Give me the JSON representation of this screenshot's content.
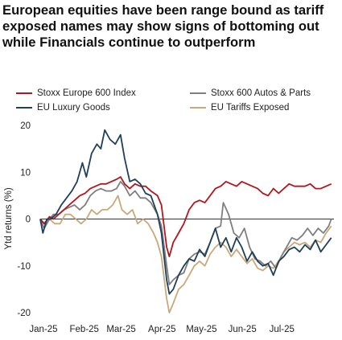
{
  "chart_data": {
    "type": "line",
    "title": "European equities have been range bound as tariff exposed names may show signs of bottoming out while Financials continue to outperform",
    "ylabel": "Ytd returns (%)",
    "xlabel": "",
    "ylim": [
      -20,
      20
    ],
    "yticks": [
      -20,
      -10,
      0,
      10,
      20
    ],
    "xlim": [
      "2025-01-01",
      "2025-08-12"
    ],
    "xticks": [
      {
        "date": "2025-01-01",
        "label": "Jan-25"
      },
      {
        "date": "2025-02-01",
        "label": "Feb-25"
      },
      {
        "date": "2025-03-01",
        "label": "Mar-25"
      },
      {
        "date": "2025-04-01",
        "label": "Apr-25"
      },
      {
        "date": "2025-05-01",
        "label": "May-25"
      },
      {
        "date": "2025-06-01",
        "label": "Jun-25"
      },
      {
        "date": "2025-07-01",
        "label": "Jul-25"
      }
    ],
    "zero_line": true,
    "grid": false,
    "legend_position": "top",
    "series": [
      {
        "name": "Stoxx Europe 600 Index",
        "color": "#b5161d",
        "points": [
          [
            "2025-01-01",
            0
          ],
          [
            "2025-01-04",
            -1
          ],
          [
            "2025-01-08",
            0.5
          ],
          [
            "2025-01-11",
            0
          ],
          [
            "2025-01-15",
            1
          ],
          [
            "2025-01-19",
            2
          ],
          [
            "2025-01-23",
            3
          ],
          [
            "2025-01-27",
            4
          ],
          [
            "2025-01-31",
            5
          ],
          [
            "2025-02-04",
            5.5
          ],
          [
            "2025-02-08",
            6.5
          ],
          [
            "2025-02-12",
            7
          ],
          [
            "2025-02-16",
            7.5
          ],
          [
            "2025-02-20",
            7.5
          ],
          [
            "2025-02-24",
            8
          ],
          [
            "2025-02-28",
            8.5
          ],
          [
            "2025-03-03",
            9
          ],
          [
            "2025-03-06",
            7.5
          ],
          [
            "2025-03-10",
            6.5
          ],
          [
            "2025-03-14",
            7.5
          ],
          [
            "2025-03-18",
            7
          ],
          [
            "2025-03-22",
            7
          ],
          [
            "2025-03-26",
            6
          ],
          [
            "2025-03-31",
            5
          ],
          [
            "2025-04-03",
            3
          ],
          [
            "2025-04-07",
            -6
          ],
          [
            "2025-04-09",
            -8
          ],
          [
            "2025-04-12",
            -5
          ],
          [
            "2025-04-16",
            -3
          ],
          [
            "2025-04-20",
            -1
          ],
          [
            "2025-04-24",
            2
          ],
          [
            "2025-04-28",
            3.5
          ],
          [
            "2025-05-02",
            4
          ],
          [
            "2025-05-06",
            3.5
          ],
          [
            "2025-05-10",
            5
          ],
          [
            "2025-05-14",
            6.5
          ],
          [
            "2025-05-18",
            7
          ],
          [
            "2025-05-22",
            8
          ],
          [
            "2025-05-26",
            7.5
          ],
          [
            "2025-05-30",
            7
          ],
          [
            "2025-06-03",
            8
          ],
          [
            "2025-06-07",
            7.5
          ],
          [
            "2025-06-11",
            7
          ],
          [
            "2025-06-15",
            6.5
          ],
          [
            "2025-06-19",
            5.5
          ],
          [
            "2025-06-23",
            5
          ],
          [
            "2025-06-27",
            6.5
          ],
          [
            "2025-07-01",
            5.5
          ],
          [
            "2025-07-05",
            6.5
          ],
          [
            "2025-07-09",
            7.5
          ],
          [
            "2025-07-13",
            7
          ],
          [
            "2025-07-17",
            7
          ],
          [
            "2025-07-21",
            7
          ],
          [
            "2025-07-25",
            7.5
          ],
          [
            "2025-07-29",
            6.5
          ],
          [
            "2025-08-02",
            6.5
          ],
          [
            "2025-08-06",
            7
          ],
          [
            "2025-08-10",
            7.5
          ]
        ]
      },
      {
        "name": "Stoxx 600 Autos & Parts",
        "color": "#7f7f7f",
        "points": [
          [
            "2025-01-01",
            0
          ],
          [
            "2025-01-04",
            -2
          ],
          [
            "2025-01-08",
            0
          ],
          [
            "2025-01-11",
            1
          ],
          [
            "2025-01-15",
            1
          ],
          [
            "2025-01-19",
            2
          ],
          [
            "2025-01-23",
            2.5
          ],
          [
            "2025-01-27",
            3
          ],
          [
            "2025-01-31",
            2
          ],
          [
            "2025-02-04",
            3
          ],
          [
            "2025-02-08",
            5
          ],
          [
            "2025-02-12",
            6
          ],
          [
            "2025-02-16",
            6.5
          ],
          [
            "2025-02-20",
            6
          ],
          [
            "2025-02-24",
            6
          ],
          [
            "2025-02-28",
            6.5
          ],
          [
            "2025-03-03",
            8
          ],
          [
            "2025-03-06",
            7
          ],
          [
            "2025-03-10",
            5
          ],
          [
            "2025-03-14",
            6
          ],
          [
            "2025-03-18",
            4.5
          ],
          [
            "2025-03-22",
            4.5
          ],
          [
            "2025-03-26",
            3.5
          ],
          [
            "2025-03-31",
            1
          ],
          [
            "2025-04-03",
            -1.5
          ],
          [
            "2025-04-07",
            -10
          ],
          [
            "2025-04-09",
            -14
          ],
          [
            "2025-04-12",
            -13
          ],
          [
            "2025-04-16",
            -12
          ],
          [
            "2025-04-20",
            -11.5
          ],
          [
            "2025-04-24",
            -8.5
          ],
          [
            "2025-04-28",
            -7.5
          ],
          [
            "2025-05-02",
            -7
          ],
          [
            "2025-05-06",
            -7.5
          ],
          [
            "2025-05-10",
            -5
          ],
          [
            "2025-05-14",
            -2
          ],
          [
            "2025-05-18",
            -1.5
          ],
          [
            "2025-05-20",
            3.5
          ],
          [
            "2025-05-24",
            1
          ],
          [
            "2025-05-28",
            -3
          ],
          [
            "2025-06-01",
            -4
          ],
          [
            "2025-06-05",
            -2
          ],
          [
            "2025-06-09",
            -6
          ],
          [
            "2025-06-13",
            -8.5
          ],
          [
            "2025-06-17",
            -9
          ],
          [
            "2025-06-21",
            -10
          ],
          [
            "2025-06-25",
            -9
          ],
          [
            "2025-06-29",
            -10.5
          ],
          [
            "2025-07-03",
            -8
          ],
          [
            "2025-07-07",
            -6
          ],
          [
            "2025-07-11",
            -4
          ],
          [
            "2025-07-15",
            -4.5
          ],
          [
            "2025-07-19",
            -3.5
          ],
          [
            "2025-07-23",
            -2
          ],
          [
            "2025-07-27",
            -3.5
          ],
          [
            "2025-07-31",
            -2
          ],
          [
            "2025-08-04",
            -3
          ],
          [
            "2025-08-08",
            -1.5
          ],
          [
            "2025-08-10",
            0
          ]
        ]
      },
      {
        "name": "EU Luxury Goods",
        "color": "#1f3f5a",
        "points": [
          [
            "2025-01-01",
            0
          ],
          [
            "2025-01-03",
            -3
          ],
          [
            "2025-01-06",
            0
          ],
          [
            "2025-01-09",
            0
          ],
          [
            "2025-01-13",
            1
          ],
          [
            "2025-01-17",
            3
          ],
          [
            "2025-01-21",
            4.5
          ],
          [
            "2025-01-25",
            6
          ],
          [
            "2025-01-29",
            8
          ],
          [
            "2025-02-02",
            12
          ],
          [
            "2025-02-05",
            9
          ],
          [
            "2025-02-09",
            14
          ],
          [
            "2025-02-13",
            16
          ],
          [
            "2025-02-16",
            15
          ],
          [
            "2025-02-19",
            19
          ],
          [
            "2025-02-23",
            17
          ],
          [
            "2025-02-27",
            16
          ],
          [
            "2025-03-03",
            18
          ],
          [
            "2025-03-06",
            13
          ],
          [
            "2025-03-10",
            8
          ],
          [
            "2025-03-14",
            8.5
          ],
          [
            "2025-03-18",
            7.5
          ],
          [
            "2025-03-22",
            5.5
          ],
          [
            "2025-03-26",
            5
          ],
          [
            "2025-03-31",
            1
          ],
          [
            "2025-04-03",
            -3
          ],
          [
            "2025-04-07",
            -13
          ],
          [
            "2025-04-09",
            -16
          ],
          [
            "2025-04-12",
            -15
          ],
          [
            "2025-04-16",
            -12
          ],
          [
            "2025-04-20",
            -10
          ],
          [
            "2025-04-24",
            -8.5
          ],
          [
            "2025-04-28",
            -9
          ],
          [
            "2025-05-02",
            -6.5
          ],
          [
            "2025-05-06",
            -8
          ],
          [
            "2025-05-10",
            -5
          ],
          [
            "2025-05-14",
            -2
          ],
          [
            "2025-05-18",
            -6
          ],
          [
            "2025-05-22",
            -4
          ],
          [
            "2025-05-26",
            -7
          ],
          [
            "2025-05-30",
            -4
          ],
          [
            "2025-06-03",
            -6
          ],
          [
            "2025-06-07",
            -9
          ],
          [
            "2025-06-11",
            -7
          ],
          [
            "2025-06-15",
            -9
          ],
          [
            "2025-06-19",
            -10
          ],
          [
            "2025-06-23",
            -9.5
          ],
          [
            "2025-06-27",
            -12
          ],
          [
            "2025-07-01",
            -9
          ],
          [
            "2025-07-05",
            -8
          ],
          [
            "2025-07-09",
            -6.5
          ],
          [
            "2025-07-13",
            -6
          ],
          [
            "2025-07-17",
            -7
          ],
          [
            "2025-07-21",
            -5.5
          ],
          [
            "2025-07-25",
            -6.5
          ],
          [
            "2025-07-29",
            -4.5
          ],
          [
            "2025-08-02",
            -7
          ],
          [
            "2025-08-06",
            -5.5
          ],
          [
            "2025-08-10",
            -4
          ]
        ]
      },
      {
        "name": "EU Tariffs Exposed",
        "color": "#c8a97a",
        "points": [
          [
            "2025-01-01",
            0
          ],
          [
            "2025-01-04",
            -1
          ],
          [
            "2025-01-08",
            0
          ],
          [
            "2025-01-12",
            -1
          ],
          [
            "2025-01-16",
            -1
          ],
          [
            "2025-01-20",
            1
          ],
          [
            "2025-01-24",
            1
          ],
          [
            "2025-01-28",
            0
          ],
          [
            "2025-02-01",
            -1
          ],
          [
            "2025-02-05",
            0
          ],
          [
            "2025-02-09",
            2
          ],
          [
            "2025-02-13",
            1
          ],
          [
            "2025-02-17",
            2
          ],
          [
            "2025-02-21",
            2
          ],
          [
            "2025-02-25",
            3
          ],
          [
            "2025-03-01",
            5
          ],
          [
            "2025-03-04",
            2
          ],
          [
            "2025-03-08",
            1
          ],
          [
            "2025-03-12",
            2
          ],
          [
            "2025-03-16",
            -1
          ],
          [
            "2025-03-20",
            0
          ],
          [
            "2025-03-24",
            -1
          ],
          [
            "2025-03-28",
            -3
          ],
          [
            "2025-03-31",
            -5
          ],
          [
            "2025-04-03",
            -8
          ],
          [
            "2025-04-07",
            -17
          ],
          [
            "2025-04-09",
            -20
          ],
          [
            "2025-04-12",
            -18
          ],
          [
            "2025-04-16",
            -15
          ],
          [
            "2025-04-20",
            -14
          ],
          [
            "2025-04-24",
            -12
          ],
          [
            "2025-04-28",
            -10
          ],
          [
            "2025-05-02",
            -9
          ],
          [
            "2025-05-06",
            -10
          ],
          [
            "2025-05-10",
            -7.5
          ],
          [
            "2025-05-14",
            -6
          ],
          [
            "2025-05-18",
            -5
          ],
          [
            "2025-05-22",
            -6
          ],
          [
            "2025-05-26",
            -8
          ],
          [
            "2025-05-30",
            -6.5
          ],
          [
            "2025-06-03",
            -8
          ],
          [
            "2025-06-07",
            -9.5
          ],
          [
            "2025-06-11",
            -8.5
          ],
          [
            "2025-06-15",
            -10.5
          ],
          [
            "2025-06-19",
            -11
          ],
          [
            "2025-06-23",
            -10
          ],
          [
            "2025-06-27",
            -10.5
          ],
          [
            "2025-07-01",
            -9
          ],
          [
            "2025-07-05",
            -7
          ],
          [
            "2025-07-09",
            -6
          ],
          [
            "2025-07-13",
            -5
          ],
          [
            "2025-07-17",
            -5.5
          ],
          [
            "2025-07-21",
            -5
          ],
          [
            "2025-07-25",
            -6
          ],
          [
            "2025-07-29",
            -4.5
          ],
          [
            "2025-08-02",
            -5
          ],
          [
            "2025-08-06",
            -3
          ],
          [
            "2025-08-10",
            -1.5
          ]
        ]
      }
    ]
  }
}
